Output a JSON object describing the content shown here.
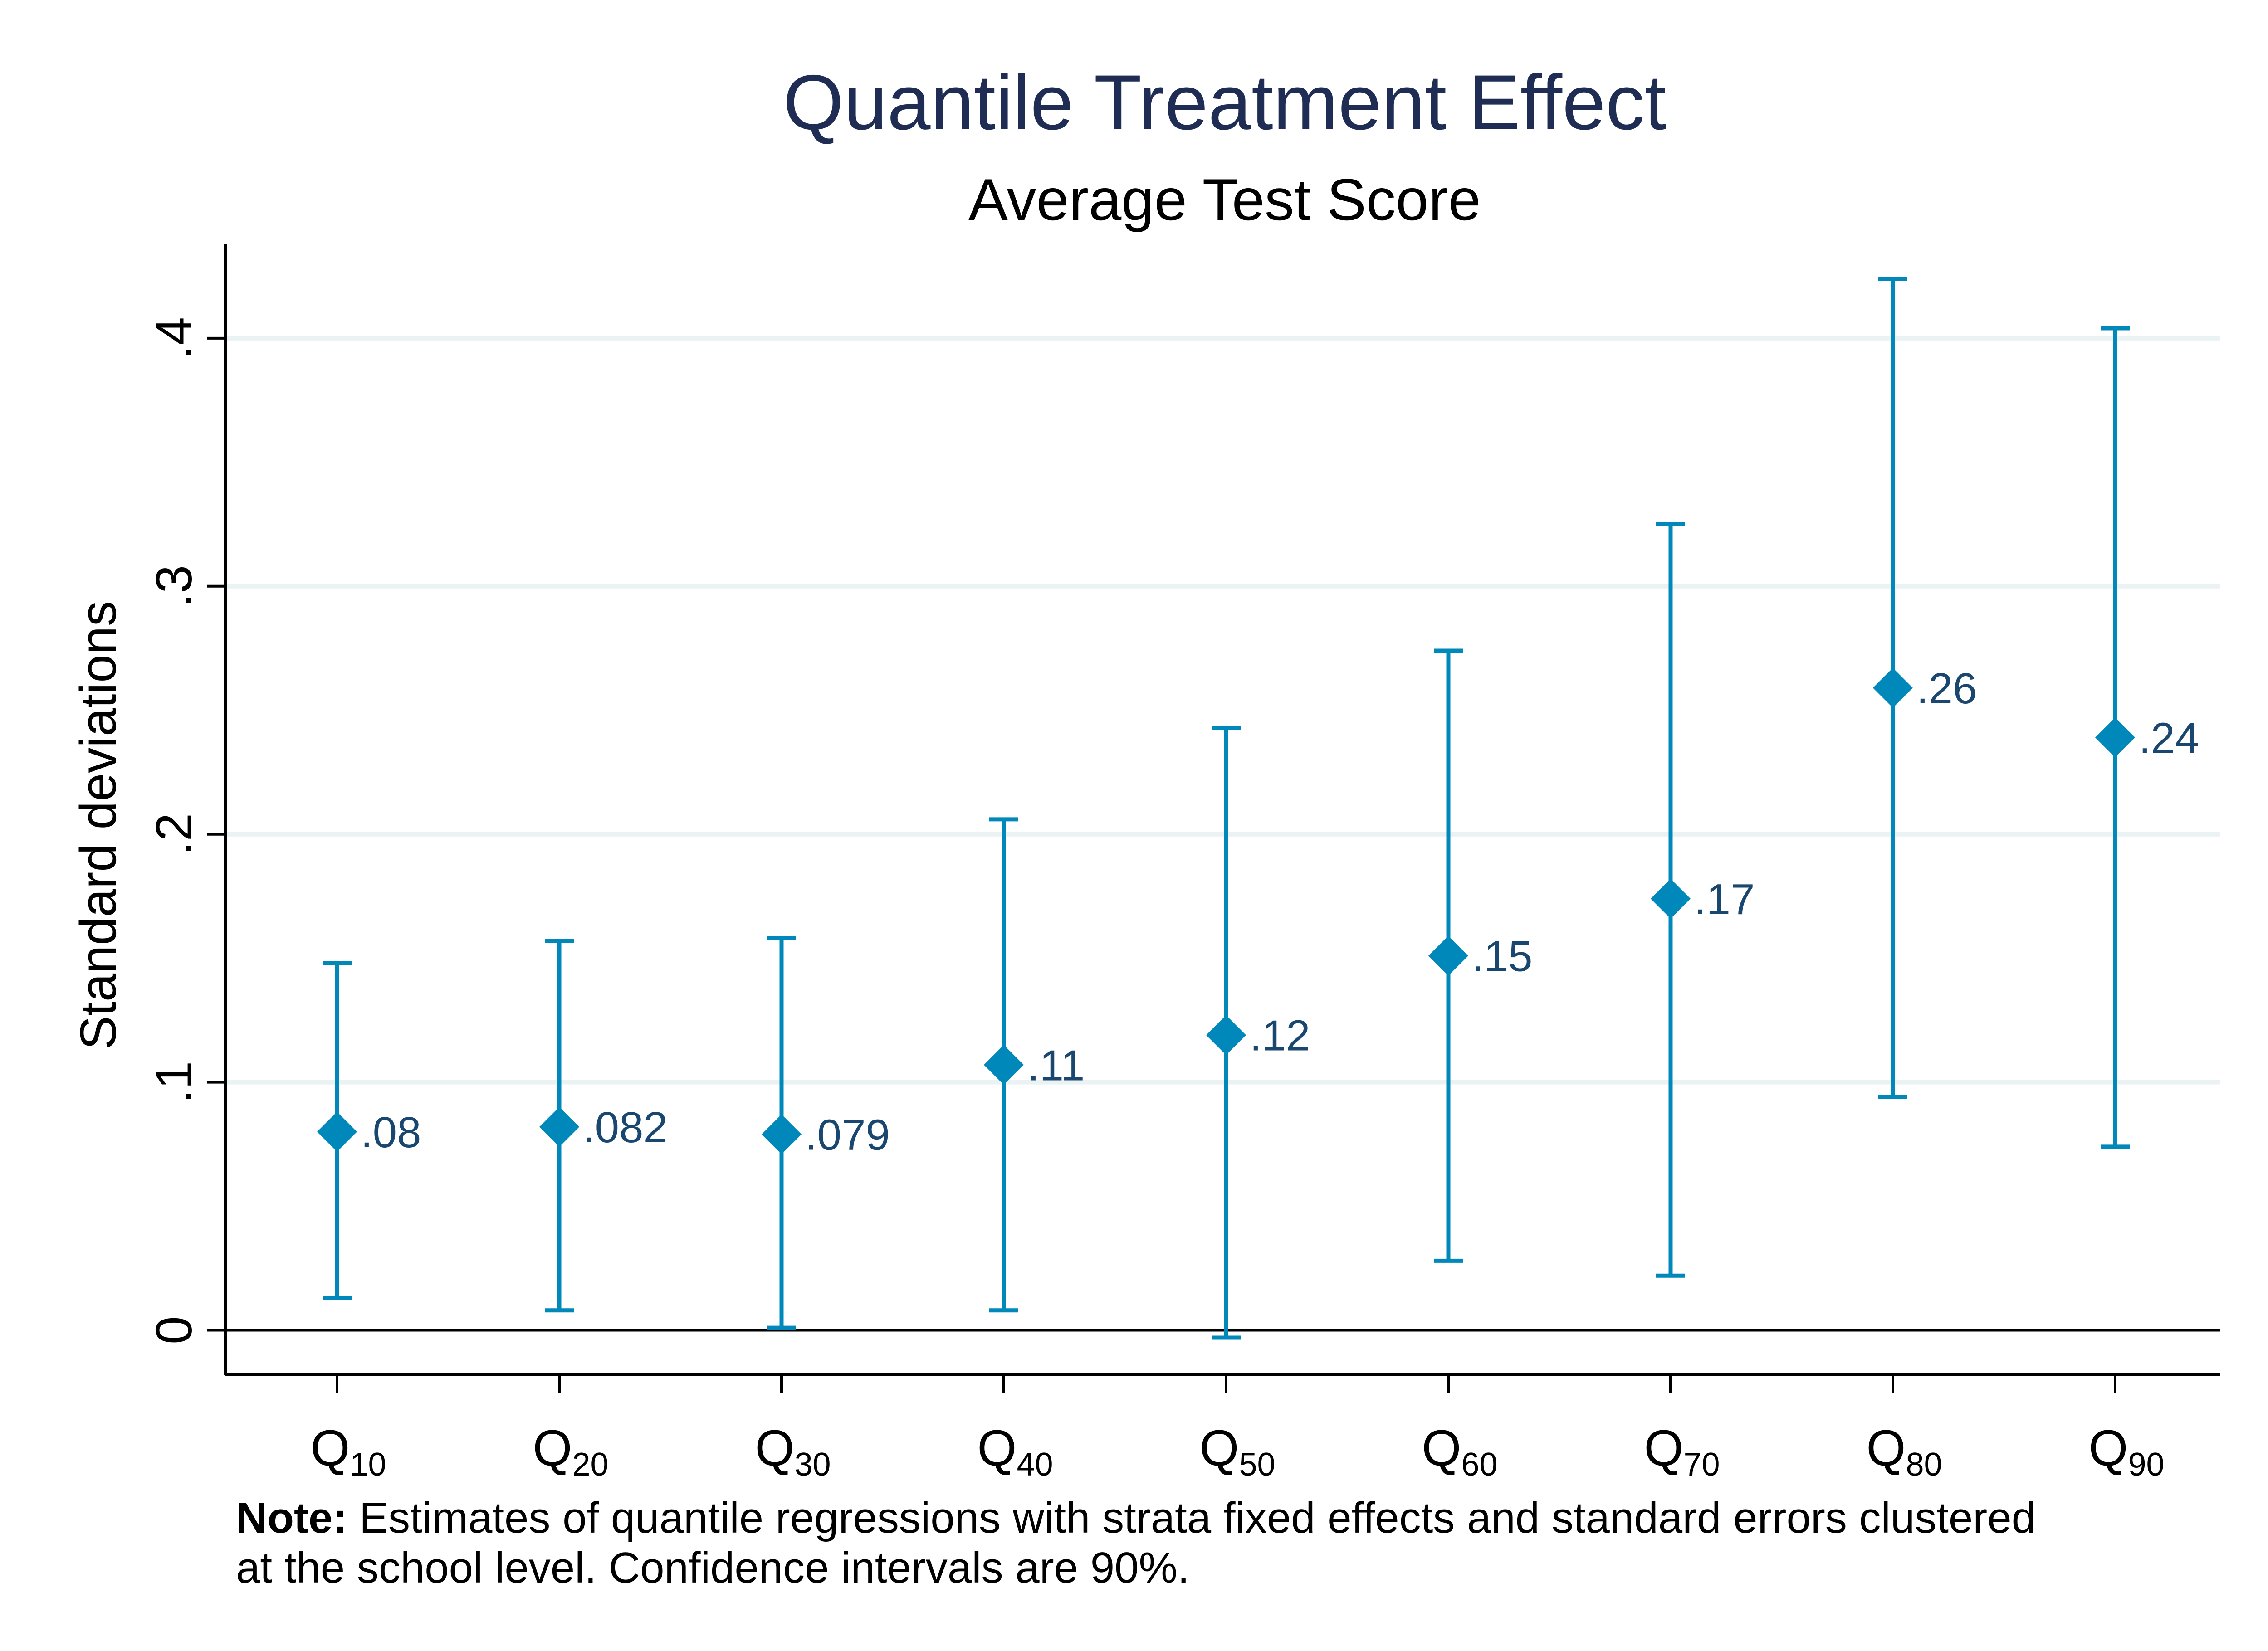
{
  "chart_data": {
    "type": "scatter",
    "title": "Quantile Treatment Effect",
    "subtitle": "Average Test Score",
    "ylabel": "Standard deviations",
    "xlabel": "",
    "ylim": [
      -0.018,
      0.438
    ],
    "yticks": [
      {
        "value": 0,
        "label": "0"
      },
      {
        "value": 0.1,
        "label": ".1"
      },
      {
        "value": 0.2,
        "label": ".2"
      },
      {
        "value": 0.3,
        "label": ".3"
      },
      {
        "value": 0.4,
        "label": ".4"
      }
    ],
    "grid": true,
    "categories": [
      {
        "base": "Q",
        "sub": "10"
      },
      {
        "base": "Q",
        "sub": "20"
      },
      {
        "base": "Q",
        "sub": "30"
      },
      {
        "base": "Q",
        "sub": "40"
      },
      {
        "base": "Q",
        "sub": "50"
      },
      {
        "base": "Q",
        "sub": "60"
      },
      {
        "base": "Q",
        "sub": "70"
      },
      {
        "base": "Q",
        "sub": "80"
      },
      {
        "base": "Q",
        "sub": "90"
      }
    ],
    "points": [
      {
        "estimate": 0.08,
        "label": ".08",
        "ci_low": 0.013,
        "ci_high": 0.148
      },
      {
        "estimate": 0.082,
        "label": ".082",
        "ci_low": 0.008,
        "ci_high": 0.157
      },
      {
        "estimate": 0.079,
        "label": ".079",
        "ci_low": 0.001,
        "ci_high": 0.158
      },
      {
        "estimate": 0.107,
        "label": ".11",
        "ci_low": 0.008,
        "ci_high": 0.206
      },
      {
        "estimate": 0.119,
        "label": ".12",
        "ci_low": -0.003,
        "ci_high": 0.243
      },
      {
        "estimate": 0.151,
        "label": ".15",
        "ci_low": 0.028,
        "ci_high": 0.274
      },
      {
        "estimate": 0.174,
        "label": ".17",
        "ci_low": 0.022,
        "ci_high": 0.325
      },
      {
        "estimate": 0.259,
        "label": ".26",
        "ci_low": 0.094,
        "ci_high": 0.424
      },
      {
        "estimate": 0.239,
        "label": ".24",
        "ci_low": 0.074,
        "ci_high": 0.404
      }
    ],
    "marker_color": "#0088bb",
    "errorbar_color": "#0088bb",
    "label_color": "#1a476f",
    "grid_color": "#eaf2f3"
  },
  "note": {
    "bold_prefix": "Note:",
    "line1": " Estimates of quantile regressions with strata fixed effects and standard errors clustered",
    "line2": "at the school level. Confidence intervals are 90%."
  }
}
